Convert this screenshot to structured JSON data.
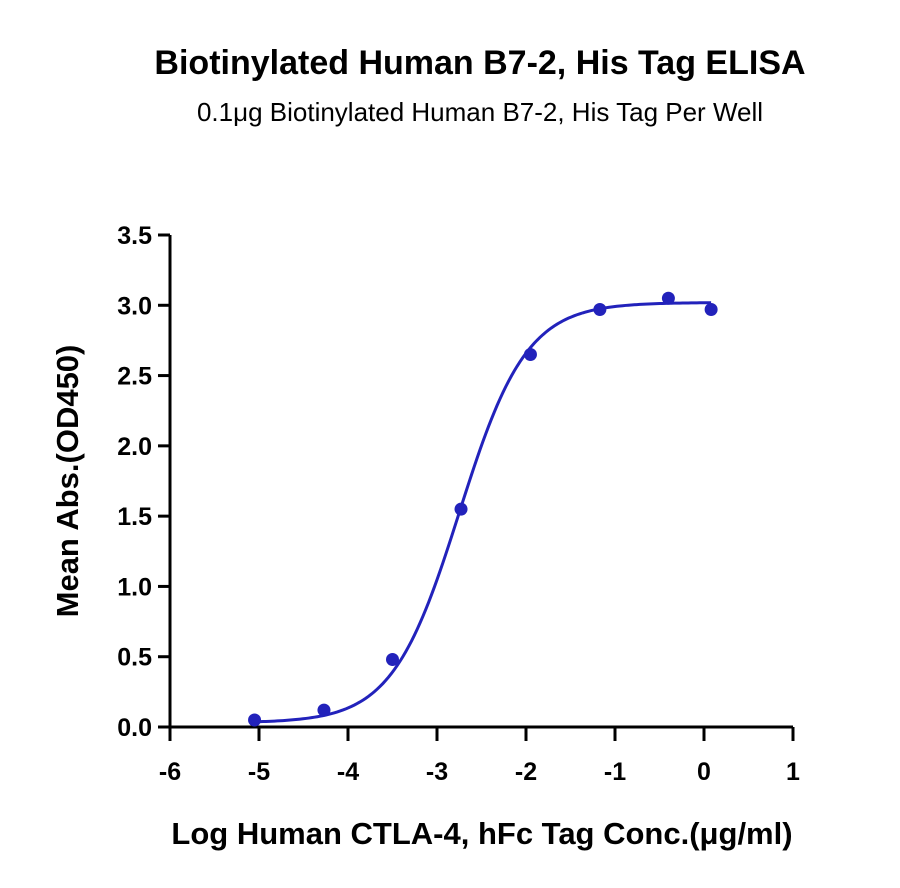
{
  "chart_data": {
    "type": "scatter",
    "title": "Biotinylated Human B7-2, His Tag ELISA",
    "subtitle": "0.1μg Biotinylated Human B7-2, His Tag Per Well",
    "xlabel": "Log Human CTLA-4, hFc Tag Conc.(μg/ml)",
    "ylabel": "Mean Abs.(OD450)",
    "xlim": [
      -6,
      1
    ],
    "ylim": [
      0,
      3.5
    ],
    "x_ticks": [
      "-6",
      "-5",
      "-4",
      "-3",
      "-2",
      "-1",
      "0",
      "1"
    ],
    "y_ticks": [
      "0.0",
      "0.5",
      "1.0",
      "1.5",
      "2.0",
      "2.5",
      "3.0",
      "3.5"
    ],
    "grid": false,
    "color": "#2222bb",
    "series": [
      {
        "x": [
          -5.05,
          -4.27,
          -3.5,
          -2.73,
          -1.95,
          -1.17,
          -0.4,
          0.08
        ],
        "y": [
          0.05,
          0.12,
          0.48,
          1.55,
          2.65,
          2.97,
          3.05,
          2.97
        ]
      }
    ],
    "fit": {
      "bottom": 0.03,
      "top": 3.02,
      "logEC50": -2.75,
      "hill": 1.15
    }
  }
}
